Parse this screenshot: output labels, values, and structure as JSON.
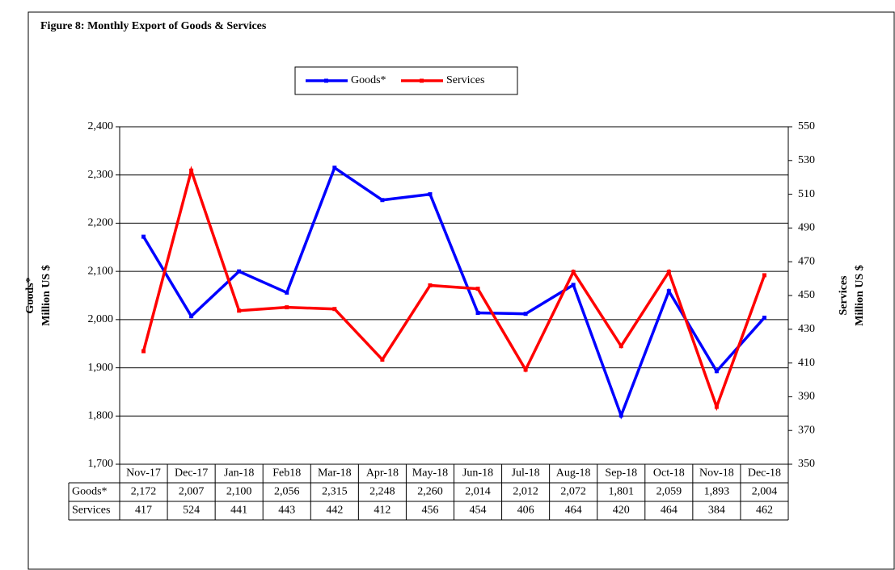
{
  "chart_data": {
    "type": "line",
    "title": "Figure 8: Monthly  Export  of Goods & Services",
    "categories": [
      "Nov-17",
      "Dec-17",
      "Jan-18",
      "Feb18",
      "Mar-18",
      "Apr-18",
      "May-18",
      "Jun-18",
      "Jul-18",
      "Aug-18",
      "Sep-18",
      "Oct-18",
      "Nov-18",
      "Dec-18"
    ],
    "series": [
      {
        "name": "Goods*",
        "color": "#0000ff",
        "axis": "y",
        "values": [
          2172,
          2007,
          2100,
          2056,
          2315,
          2248,
          2260,
          2014,
          2012,
          2072,
          1801,
          2059,
          1893,
          2004
        ],
        "value_labels": [
          "2,172",
          "2,007",
          "2,100",
          "2,056",
          "2,315",
          "2,248",
          "2,260",
          "2,014",
          "2,012",
          "2,072",
          "1,801",
          "2,059",
          "1,893",
          "2,004"
        ]
      },
      {
        "name": "Services",
        "color": "#ff0000",
        "axis": "y2",
        "values": [
          417,
          524,
          441,
          443,
          442,
          412,
          456,
          454,
          406,
          464,
          420,
          464,
          384,
          462
        ]
      }
    ],
    "ylabel": [
      "Goods*",
      "Million US $"
    ],
    "y2label": [
      "Services",
      "Million US $"
    ],
    "ylim": [
      1700,
      2400
    ],
    "yticks": [
      {
        "value": 1700,
        "label": "1,700"
      },
      {
        "value": 1800,
        "label": "1,800"
      },
      {
        "value": 1900,
        "label": "1,900"
      },
      {
        "value": 2000,
        "label": "2,000"
      },
      {
        "value": 2100,
        "label": "2,100"
      },
      {
        "value": 2200,
        "label": "2,200"
      },
      {
        "value": 2300,
        "label": "2,300"
      },
      {
        "value": 2400,
        "label": "2,400"
      }
    ],
    "y2lim": [
      350,
      550
    ],
    "y2ticks": [
      350,
      370,
      390,
      410,
      430,
      450,
      470,
      490,
      510,
      530,
      550
    ],
    "grid": true,
    "legend": "top"
  }
}
